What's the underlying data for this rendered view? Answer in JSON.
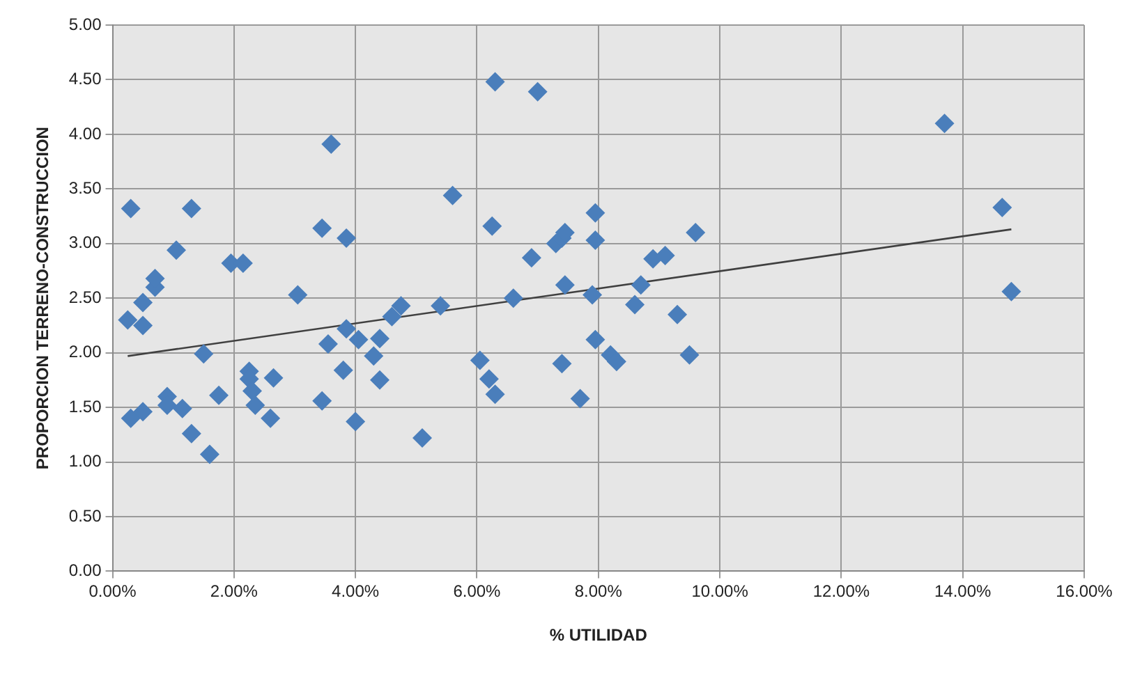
{
  "chart_data": {
    "type": "scatter",
    "xlabel": "% UTILIDAD",
    "ylabel": "PROPORCION TERRENO-CONSTRUCCION",
    "xlim": [
      0,
      16
    ],
    "ylim": [
      0,
      5
    ],
    "xticks": [
      {
        "value": 0,
        "label": "0.00%"
      },
      {
        "value": 2,
        "label": "2.00%"
      },
      {
        "value": 4,
        "label": "4.00%"
      },
      {
        "value": 6,
        "label": "6.00%"
      },
      {
        "value": 8,
        "label": "8.00%"
      },
      {
        "value": 10,
        "label": "10.00%"
      },
      {
        "value": 12,
        "label": "12.00%"
      },
      {
        "value": 14,
        "label": "14.00%"
      },
      {
        "value": 16,
        "label": "16.00%"
      }
    ],
    "yticks": [
      {
        "value": 0,
        "label": "0.00"
      },
      {
        "value": 0.5,
        "label": "0.50"
      },
      {
        "value": 1,
        "label": "1.00"
      },
      {
        "value": 1.5,
        "label": "1.50"
      },
      {
        "value": 2,
        "label": "2.00"
      },
      {
        "value": 2.5,
        "label": "2.50"
      },
      {
        "value": 3,
        "label": "3.00"
      },
      {
        "value": 3.5,
        "label": "3.50"
      },
      {
        "value": 4,
        "label": "4.00"
      },
      {
        "value": 4.5,
        "label": "4.50"
      },
      {
        "value": 5,
        "label": "5.00"
      }
    ],
    "grid": true,
    "legend": false,
    "series": [
      {
        "color": "#4a7ebb",
        "marker": "diamond",
        "x": [
          0.3,
          0.25,
          0.3,
          0.5,
          0.5,
          0.5,
          0.7,
          0.7,
          0.9,
          0.9,
          1.05,
          1.15,
          1.3,
          1.3,
          1.5,
          1.6,
          1.75,
          1.95,
          2.15,
          2.25,
          2.25,
          2.3,
          2.35,
          2.6,
          2.65,
          3.05,
          3.45,
          3.45,
          3.55,
          3.6,
          3.8,
          3.85,
          3.85,
          4.0,
          4.05,
          4.3,
          4.4,
          4.4,
          4.6,
          4.75,
          5.1,
          5.4,
          5.6,
          6.05,
          6.2,
          6.25,
          6.3,
          6.3,
          6.6,
          6.9,
          7.0,
          7.3,
          7.4,
          7.4,
          7.45,
          7.45,
          7.7,
          7.9,
          7.95,
          7.95,
          7.95,
          8.2,
          8.3,
          8.6,
          8.7,
          8.9,
          9.1,
          9.3,
          9.5,
          9.6,
          13.7,
          14.65,
          14.8
        ],
        "values": [
          3.32,
          2.3,
          1.4,
          2.46,
          2.25,
          1.46,
          2.6,
          2.68,
          1.6,
          1.52,
          2.94,
          1.49,
          3.32,
          1.26,
          1.99,
          1.07,
          1.61,
          2.82,
          2.82,
          1.83,
          1.76,
          1.65,
          1.52,
          1.4,
          1.77,
          2.53,
          1.56,
          3.14,
          2.08,
          3.91,
          1.84,
          2.22,
          3.05,
          1.37,
          2.12,
          1.97,
          2.13,
          1.75,
          2.33,
          2.43,
          1.22,
          2.43,
          3.44,
          1.93,
          1.76,
          3.16,
          1.62,
          4.48,
          2.5,
          2.87,
          4.39,
          3.0,
          1.9,
          3.05,
          3.1,
          2.62,
          1.58,
          2.53,
          3.28,
          3.03,
          2.12,
          1.98,
          1.92,
          2.44,
          2.62,
          2.86,
          2.89,
          2.35,
          1.98,
          3.1,
          4.1,
          3.33,
          2.56
        ]
      },
      {
        "type": "line",
        "color": "#404040",
        "marker": "none",
        "x": [
          0.25,
          14.8
        ],
        "values": [
          1.97,
          3.13
        ]
      }
    ]
  }
}
